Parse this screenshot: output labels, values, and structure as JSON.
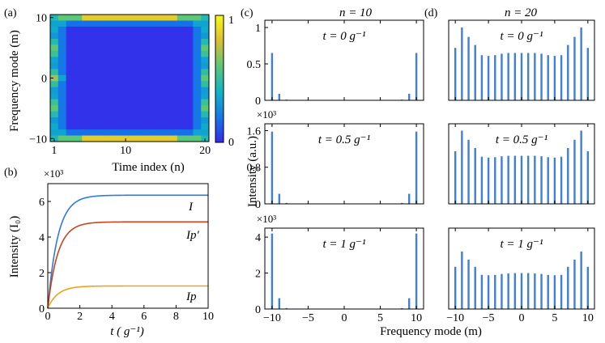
{
  "panel_labels": {
    "a": "(a)",
    "b": "(b)",
    "c": "(c)",
    "d": "(d)"
  },
  "colors": {
    "bar": "#3f7fd6",
    "I": "#2f7bdc",
    "Ip_prime": "#c8441c",
    "Ip": "#eda21e"
  },
  "text": {
    "a_ylabel": "Frequency mode (m)",
    "a_xlabel": "Time index (n)",
    "b_ylabel": "Intensity (I₀)",
    "b_xlabel": "t ( g⁻¹)",
    "b_scale": "×10³",
    "c_title": "n = 10",
    "d_title": "n = 20",
    "cd_ylabel": "Intensity (a.u.)",
    "cd_xlabel": "Frequency mode (m)",
    "row_scale": "×10³",
    "t0": "t = 0 g⁻¹",
    "t05": "t = 0.5 g⁻¹",
    "t1": "t = 1 g⁻¹",
    "label_I": "I",
    "label_Ipp": "Ip′",
    "label_Ip": "Ip"
  },
  "chart_data": [
    {
      "id": "a",
      "type": "heatmap",
      "xlabel": "Time index (n)",
      "ylabel": "Frequency mode (m)",
      "xticks": [
        1,
        10,
        20
      ],
      "yticks": [
        10,
        0,
        -10
      ],
      "colorbar": {
        "ticks": [
          0,
          1
        ],
        "range": [
          0,
          1
        ]
      },
      "description_values": "20x21 grid, near-zero interior, higher intensity on boundary rows/columns",
      "x": {
        "min": 1,
        "max": 20
      },
      "y": {
        "min": -10,
        "max": 10
      }
    },
    {
      "id": "b",
      "type": "line",
      "xlabel": "t ( g⁻¹)",
      "ylabel": "Intensity (I₀)",
      "scale": "×10³",
      "xlim": [
        0,
        10
      ],
      "ylim": [
        0,
        7
      ],
      "xticks": [
        0,
        2,
        4,
        6,
        8,
        10
      ],
      "yticks": [
        0,
        2,
        4,
        6
      ],
      "series": [
        {
          "name": "I",
          "color": "#2f7bdc",
          "saturation": 6.35,
          "rate": 1.6
        },
        {
          "name": "Ip′",
          "color": "#c8441c",
          "saturation": 4.85,
          "rate": 1.6
        },
        {
          "name": "Ip",
          "color": "#eda21e",
          "saturation": 1.25,
          "rate": 1.6
        }
      ]
    },
    {
      "id": "c",
      "type": "bar",
      "title": "n = 10",
      "x": [
        -10,
        -9,
        -8,
        -7,
        -6,
        -5,
        -4,
        -3,
        -2,
        -1,
        0,
        1,
        2,
        3,
        4,
        5,
        6,
        7,
        8,
        9,
        10
      ],
      "xticks": [
        -10,
        -5,
        0,
        5,
        10
      ],
      "rows": [
        {
          "label": "t = 0 g⁻¹",
          "ylim": [
            0,
            1.1
          ],
          "yticks": [
            0,
            0.5,
            1
          ],
          "scale": "",
          "values": [
            0.65,
            0.09,
            0.01,
            0,
            0,
            0,
            0,
            0,
            0,
            0,
            0,
            0,
            0,
            0,
            0,
            0,
            0,
            0,
            0.01,
            0.09,
            0.65
          ]
        },
        {
          "label": "t = 0.5 g⁻¹",
          "ylim": [
            0,
            1.75
          ],
          "yticks": [
            0,
            0.8,
            1.6
          ],
          "scale": "×10³",
          "values": [
            1.58,
            0.22,
            0.02,
            0,
            0,
            0,
            0,
            0,
            0,
            0,
            0,
            0,
            0,
            0,
            0,
            0,
            0,
            0,
            0.02,
            0.22,
            1.58
          ]
        },
        {
          "label": "t = 1 g⁻¹",
          "ylim": [
            0,
            4.5
          ],
          "yticks": [
            0,
            2,
            4
          ],
          "scale": "×10³",
          "values": [
            4.2,
            0.6,
            0.05,
            0,
            0,
            0,
            0,
            0,
            0,
            0,
            0,
            0,
            0,
            0,
            0,
            0,
            0,
            0,
            0.05,
            0.6,
            4.2
          ]
        }
      ]
    },
    {
      "id": "d",
      "type": "bar",
      "title": "n = 20",
      "x": [
        -10,
        -9,
        -8,
        -7,
        -6,
        -5,
        -4,
        -3,
        -2,
        -1,
        0,
        1,
        2,
        3,
        4,
        5,
        6,
        7,
        8,
        9,
        10
      ],
      "xticks": [
        -10,
        -5,
        0,
        5,
        10
      ],
      "rows": [
        {
          "label": "t = 0 g⁻¹",
          "ylim": [
            0,
            1.1
          ],
          "yticks": [],
          "scale": "",
          "values": [
            0.72,
            1.0,
            0.87,
            0.76,
            0.62,
            0.61,
            0.62,
            0.64,
            0.65,
            0.65,
            0.65,
            0.65,
            0.65,
            0.64,
            0.62,
            0.61,
            0.62,
            0.76,
            0.87,
            1.0,
            0.72
          ]
        },
        {
          "label": "t = 0.5 g⁻¹",
          "ylim": [
            0,
            1.75
          ],
          "yticks": [],
          "scale": "",
          "values": [
            1.15,
            1.6,
            1.4,
            1.22,
            1.03,
            1.01,
            1.02,
            1.04,
            1.05,
            1.05,
            1.05,
            1.05,
            1.05,
            1.04,
            1.02,
            1.01,
            1.03,
            1.22,
            1.4,
            1.6,
            1.15
          ]
        },
        {
          "label": "t = 1 g⁻¹",
          "ylim": [
            0,
            4.5
          ],
          "yticks": [],
          "scale": "",
          "values": [
            2.35,
            3.2,
            2.75,
            2.35,
            1.9,
            1.88,
            1.9,
            1.95,
            1.98,
            2.0,
            2.0,
            2.0,
            1.98,
            1.95,
            1.9,
            1.88,
            1.9,
            2.35,
            2.75,
            3.2,
            2.35
          ]
        }
      ]
    }
  ]
}
